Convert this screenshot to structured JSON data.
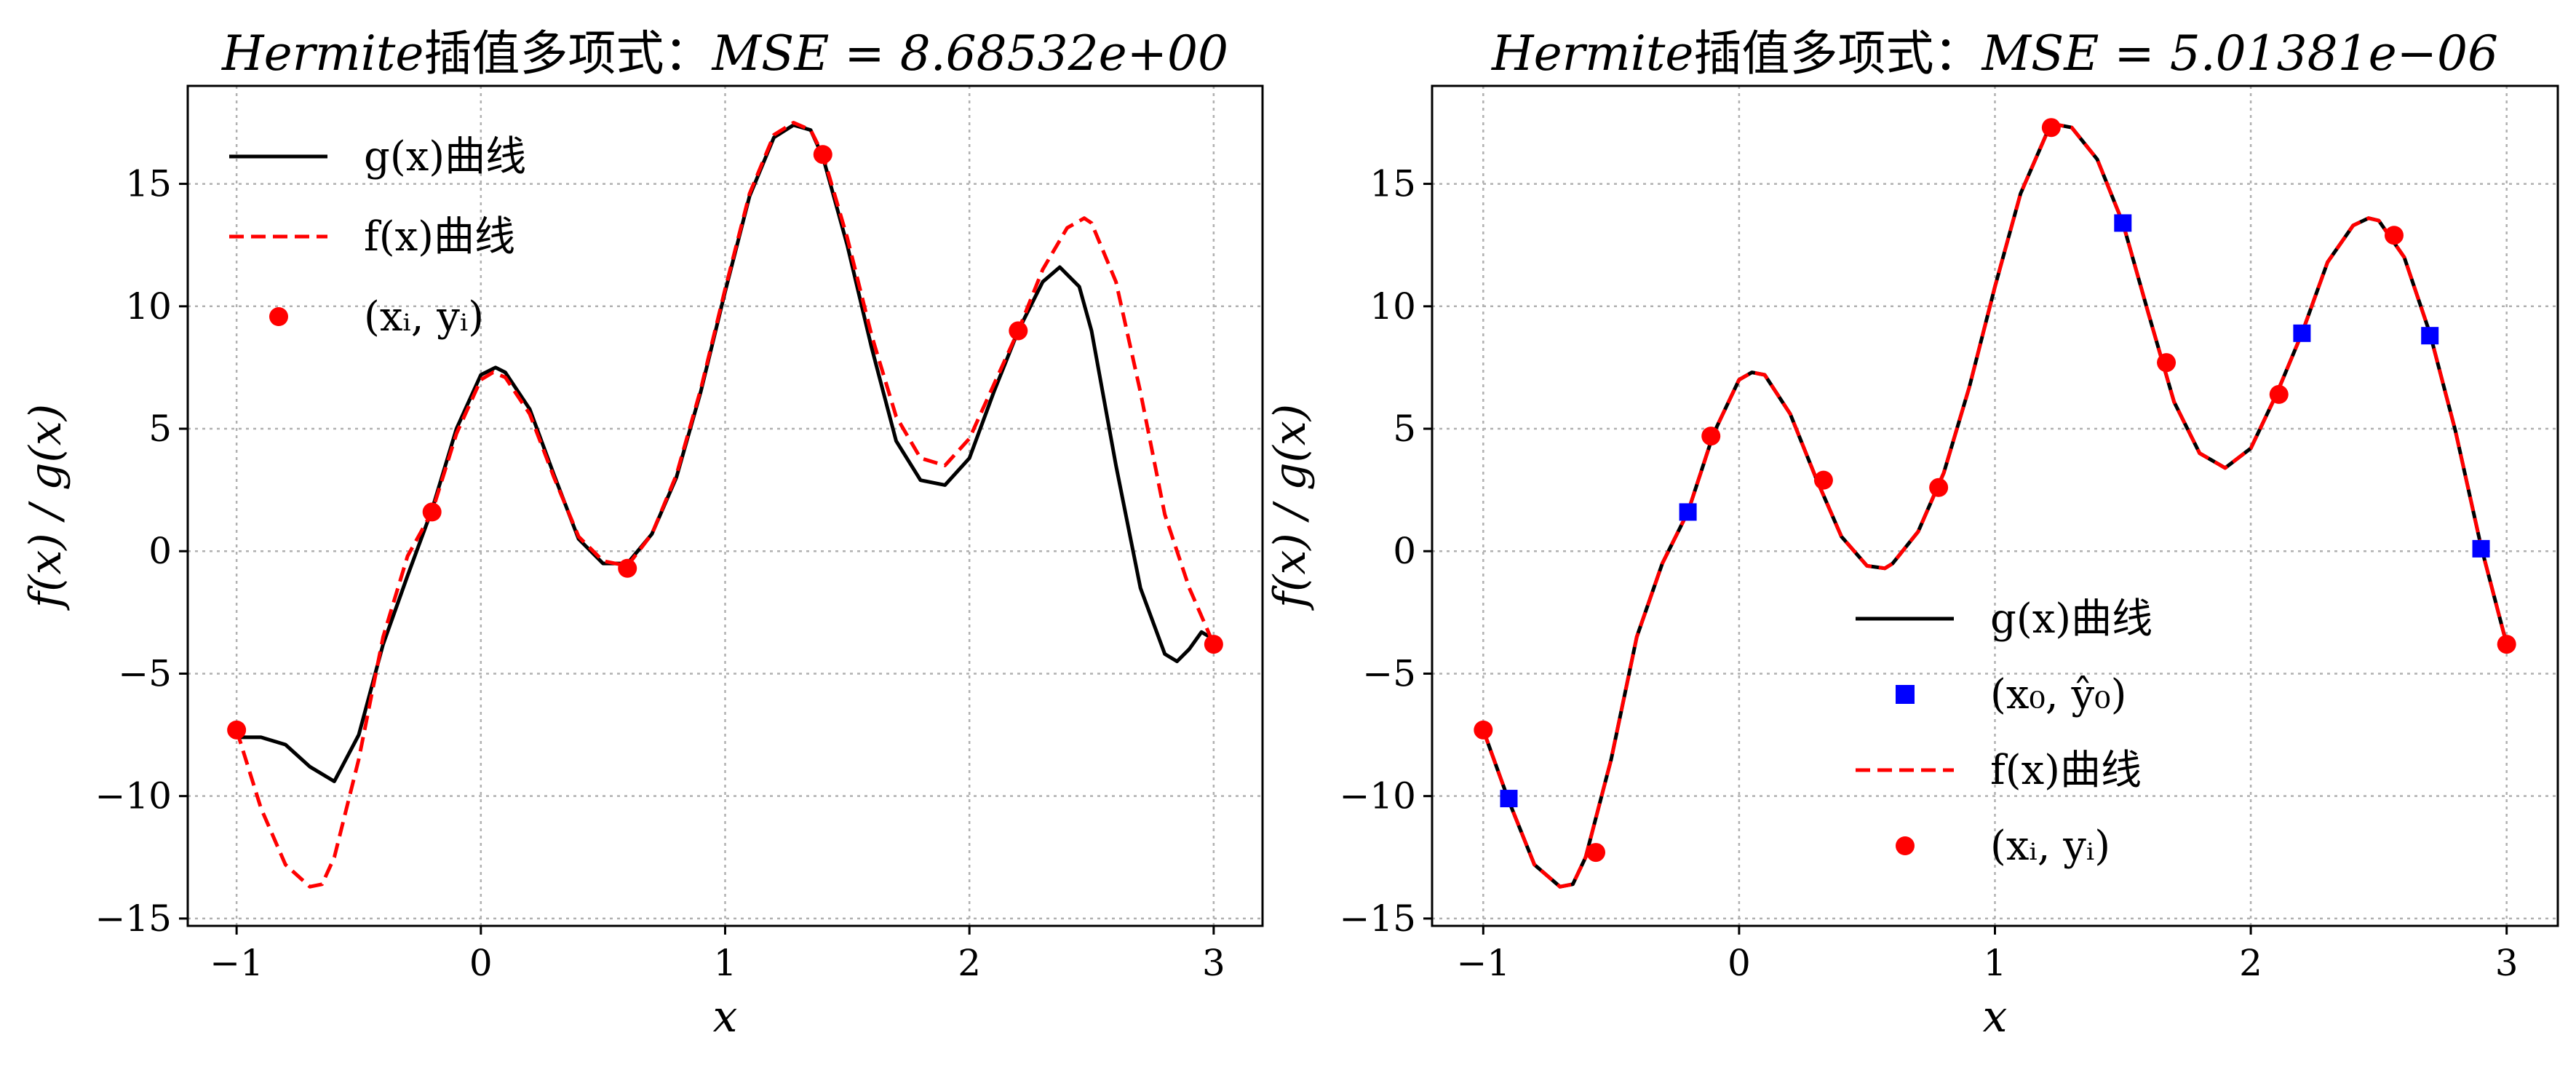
{
  "colors": {
    "g_curve": "#000000",
    "f_curve": "#ff0000",
    "points": "#ff0000",
    "squares": "#0000ff",
    "grid": "#b0b0b0"
  },
  "chart_data": [
    {
      "type": "line",
      "title": "Hermite插值多项式：MSE = 8.68532e+00",
      "title_parts": {
        "name": "Hermite",
        "cn": "插值多项式：",
        "metric": "MSE = 8.68532e+00"
      },
      "xlabel": "x",
      "ylabel": "f(x) / g(x)",
      "xlim": [
        -1.2,
        3.2
      ],
      "ylim": [
        -15.3,
        19.0
      ],
      "xticks": [
        -1,
        0,
        1,
        2,
        3
      ],
      "xtick_labels": [
        "−1",
        "0",
        "1",
        "2",
        "3"
      ],
      "yticks": [
        -15,
        -10,
        -5,
        0,
        5,
        10,
        15
      ],
      "ytick_labels": [
        "−15",
        "−10",
        "−5",
        "0",
        "5",
        "10",
        "15"
      ],
      "grid": true,
      "legend_position": "top-left",
      "series": [
        {
          "name": "g(x)曲线",
          "kind": "line",
          "style": "solid",
          "color": "#000000",
          "x": [
            -1.0,
            -0.9,
            -0.8,
            -0.7,
            -0.6,
            -0.5,
            -0.4,
            -0.3,
            -0.2,
            -0.1,
            0.0,
            0.06,
            0.1,
            0.2,
            0.3,
            0.4,
            0.5,
            0.6,
            0.7,
            0.8,
            0.9,
            1.0,
            1.1,
            1.2,
            1.28,
            1.35,
            1.4,
            1.5,
            1.6,
            1.7,
            1.8,
            1.9,
            2.0,
            2.1,
            2.2,
            2.3,
            2.37,
            2.45,
            2.5,
            2.6,
            2.7,
            2.8,
            2.85,
            2.9,
            2.95,
            3.0
          ],
          "y": [
            -7.6,
            -7.6,
            -7.9,
            -8.8,
            -9.4,
            -7.5,
            -3.8,
            -1.0,
            1.7,
            5.0,
            7.2,
            7.5,
            7.3,
            5.8,
            3.1,
            0.5,
            -0.5,
            -0.5,
            0.7,
            3.0,
            6.5,
            10.6,
            14.5,
            16.9,
            17.4,
            17.2,
            16.1,
            12.5,
            8.3,
            4.5,
            2.9,
            2.7,
            3.8,
            6.5,
            9.0,
            11.0,
            11.6,
            10.8,
            9.0,
            3.5,
            -1.5,
            -4.2,
            -4.5,
            -4.0,
            -3.3,
            -3.6
          ]
        },
        {
          "name": "f(x)曲线",
          "kind": "line",
          "style": "dashed",
          "color": "#ff0000",
          "x": [
            -1.0,
            -0.9,
            -0.8,
            -0.7,
            -0.65,
            -0.6,
            -0.5,
            -0.4,
            -0.3,
            -0.2,
            -0.1,
            0.0,
            0.05,
            0.1,
            0.2,
            0.3,
            0.4,
            0.5,
            0.6,
            0.7,
            0.8,
            0.9,
            1.0,
            1.1,
            1.2,
            1.28,
            1.35,
            1.4,
            1.5,
            1.6,
            1.7,
            1.8,
            1.9,
            2.0,
            2.1,
            2.2,
            2.3,
            2.4,
            2.47,
            2.5,
            2.6,
            2.7,
            2.8,
            2.9,
            3.0
          ],
          "y": [
            -7.3,
            -10.5,
            -12.8,
            -13.7,
            -13.6,
            -12.5,
            -8.5,
            -3.5,
            -0.2,
            1.6,
            4.8,
            7.0,
            7.3,
            7.1,
            5.6,
            3.0,
            0.6,
            -0.4,
            -0.6,
            0.7,
            3.1,
            6.6,
            10.7,
            14.6,
            17.0,
            17.5,
            17.2,
            16.2,
            12.8,
            8.8,
            5.5,
            3.8,
            3.5,
            4.6,
            6.8,
            9.0,
            11.5,
            13.2,
            13.6,
            13.4,
            11.0,
            6.5,
            1.5,
            -1.5,
            -3.8
          ]
        },
        {
          "name": "(xᵢ, yᵢ)",
          "kind": "scatter",
          "marker": "circle",
          "color": "#ff0000",
          "x": [
            -1.0,
            -0.2,
            0.6,
            1.4,
            2.2,
            3.0
          ],
          "y": [
            -7.3,
            1.6,
            -0.7,
            16.2,
            9.0,
            -3.8
          ]
        }
      ]
    },
    {
      "type": "line",
      "title": "Hermite插值多项式：MSE = 5.01381e−06",
      "title_parts": {
        "name": "Hermite",
        "cn": "插值多项式：",
        "metric": "MSE = 5.01381e−06"
      },
      "xlabel": "x",
      "ylabel": "f(x) / g(x)",
      "xlim": [
        -1.2,
        3.2
      ],
      "ylim": [
        -15.3,
        19.0
      ],
      "xticks": [
        -1,
        0,
        1,
        2,
        3
      ],
      "xtick_labels": [
        "−1",
        "0",
        "1",
        "2",
        "3"
      ],
      "yticks": [
        -15,
        -10,
        -5,
        0,
        5,
        10,
        15
      ],
      "ytick_labels": [
        "−15",
        "−10",
        "−5",
        "0",
        "5",
        "10",
        "15"
      ],
      "grid": true,
      "legend_position": "center",
      "series": [
        {
          "name": "g(x)曲线",
          "kind": "line",
          "style": "solid",
          "color": "#000000",
          "x": [
            -1.0,
            -0.9,
            -0.8,
            -0.7,
            -0.65,
            -0.6,
            -0.5,
            -0.4,
            -0.3,
            -0.2,
            -0.1,
            0.0,
            0.05,
            0.1,
            0.2,
            0.3,
            0.4,
            0.5,
            0.57,
            0.6,
            0.7,
            0.8,
            0.9,
            1.0,
            1.1,
            1.2,
            1.25,
            1.3,
            1.4,
            1.5,
            1.6,
            1.7,
            1.8,
            1.9,
            2.0,
            2.1,
            2.2,
            2.3,
            2.4,
            2.46,
            2.5,
            2.6,
            2.7,
            2.8,
            2.9,
            3.0
          ],
          "y": [
            -7.3,
            -10.2,
            -12.8,
            -13.7,
            -13.6,
            -12.5,
            -8.5,
            -3.5,
            -0.5,
            1.6,
            4.8,
            7.0,
            7.3,
            7.2,
            5.6,
            3.0,
            0.6,
            -0.6,
            -0.7,
            -0.5,
            0.8,
            3.2,
            6.7,
            10.8,
            14.6,
            17.0,
            17.4,
            17.3,
            16.0,
            13.4,
            9.7,
            6.1,
            4.0,
            3.4,
            4.2,
            6.4,
            8.9,
            11.8,
            13.3,
            13.6,
            13.5,
            12.0,
            8.9,
            4.9,
            0.2,
            -3.8
          ]
        },
        {
          "name": "(x₀, ŷ₀)",
          "kind": "scatter",
          "marker": "square",
          "color": "#0000ff",
          "x": [
            -0.9,
            -0.2,
            1.5,
            2.2,
            2.7,
            2.9
          ],
          "y": [
            -10.1,
            1.6,
            13.4,
            8.9,
            8.8,
            0.1
          ]
        },
        {
          "name": "f(x)曲线",
          "kind": "line",
          "style": "dashed",
          "color": "#ff0000",
          "x": [
            -1.0,
            -0.9,
            -0.8,
            -0.7,
            -0.65,
            -0.6,
            -0.5,
            -0.4,
            -0.3,
            -0.2,
            -0.1,
            0.0,
            0.05,
            0.1,
            0.2,
            0.3,
            0.4,
            0.5,
            0.57,
            0.6,
            0.7,
            0.8,
            0.9,
            1.0,
            1.1,
            1.2,
            1.25,
            1.3,
            1.4,
            1.5,
            1.6,
            1.7,
            1.8,
            1.9,
            2.0,
            2.1,
            2.2,
            2.3,
            2.4,
            2.46,
            2.5,
            2.6,
            2.7,
            2.8,
            2.9,
            3.0
          ],
          "y": [
            -7.3,
            -10.2,
            -12.8,
            -13.7,
            -13.6,
            -12.5,
            -8.5,
            -3.5,
            -0.5,
            1.6,
            4.8,
            7.0,
            7.3,
            7.2,
            5.6,
            3.0,
            0.6,
            -0.6,
            -0.7,
            -0.5,
            0.8,
            3.2,
            6.7,
            10.8,
            14.6,
            17.0,
            17.4,
            17.3,
            16.0,
            13.4,
            9.7,
            6.1,
            4.0,
            3.4,
            4.2,
            6.4,
            8.9,
            11.8,
            13.3,
            13.6,
            13.5,
            12.0,
            8.9,
            4.9,
            0.2,
            -3.8
          ]
        },
        {
          "name": "(xᵢ, yᵢ)",
          "kind": "scatter",
          "marker": "circle",
          "color": "#ff0000",
          "x": [
            -1.0,
            -0.56,
            -0.11,
            0.33,
            0.78,
            1.22,
            1.67,
            2.11,
            2.56,
            3.0
          ],
          "y": [
            -7.3,
            -12.3,
            4.7,
            2.9,
            2.6,
            17.3,
            7.7,
            6.4,
            12.9,
            -3.8
          ]
        }
      ]
    }
  ]
}
